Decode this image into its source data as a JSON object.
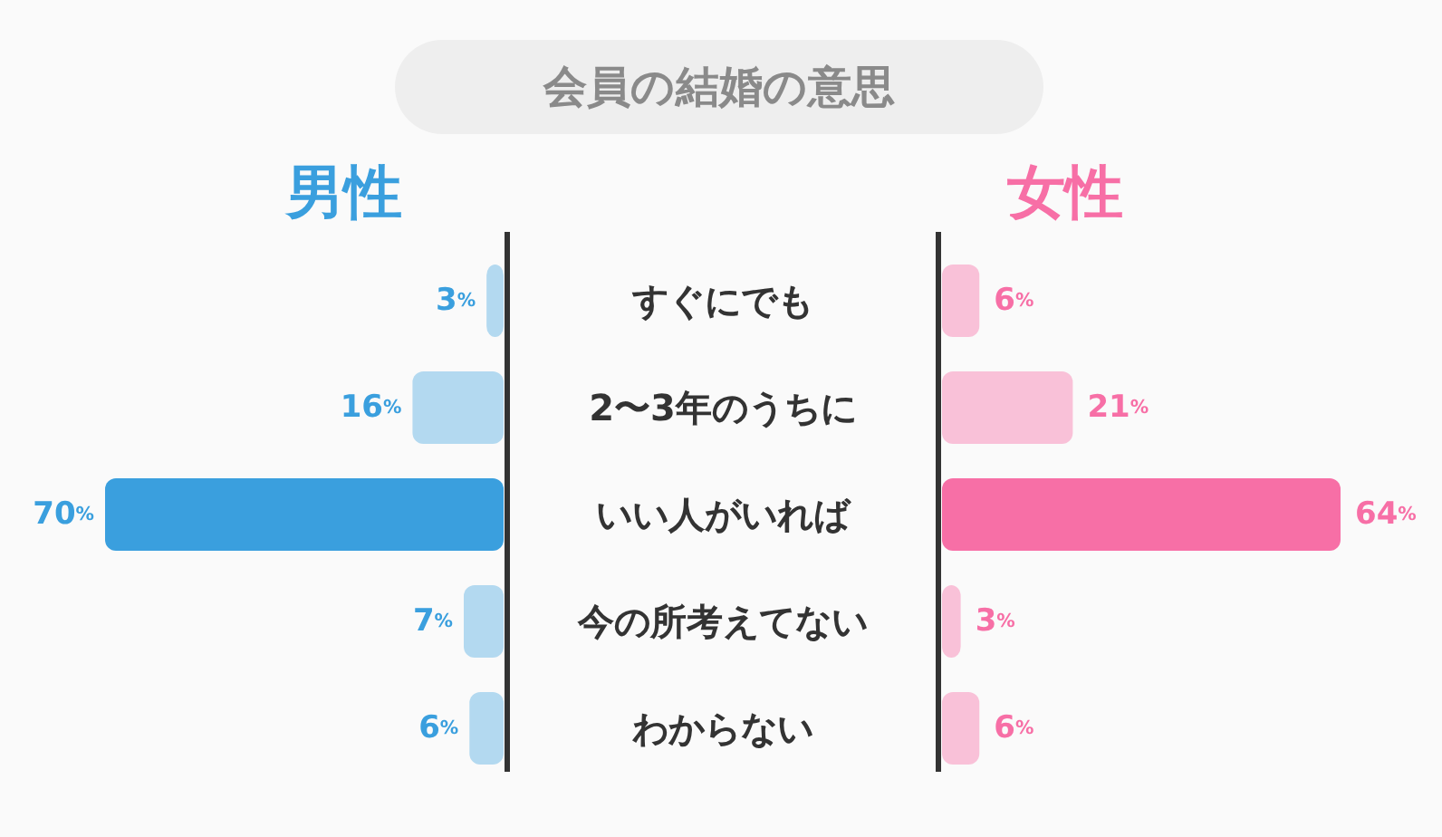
{
  "chart_data": [
    {
      "type": "bar",
      "orientation": "horizontal",
      "title": "会員の結婚の意思",
      "categories": [
        "すぐにでも",
        "2〜3年のうちに",
        "いい人がいれば",
        "今の所考えてない",
        "わからない"
      ],
      "series": [
        {
          "name": "男性",
          "color": "#3a9fde",
          "colors": [
            "#b3d9f0",
            "#b3d9f0",
            "#3a9fde",
            "#b3d9f0",
            "#b3d9f0"
          ],
          "values": [
            3,
            16,
            70,
            7,
            6
          ],
          "value_labels": [
            "3%",
            "16%",
            "70%",
            "7%",
            "6%"
          ]
        }
      ]
    },
    {
      "type": "bar",
      "orientation": "horizontal",
      "series": [
        {
          "name": "女性",
          "color": "#f76fa6",
          "colors": [
            "#f9c1d8",
            "#f9c1d8",
            "#f76fa6",
            "#f9c1d8",
            "#f9c1d8"
          ],
          "values": [
            6,
            21,
            64,
            3,
            6
          ],
          "value_labels": [
            "6%",
            "21%",
            "64%",
            "3%",
            "6%"
          ]
        }
      ]
    }
  ]
}
